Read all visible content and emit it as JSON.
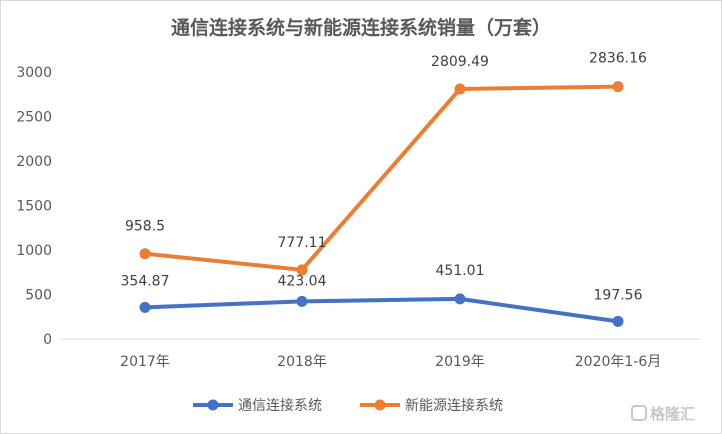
{
  "chart_data": {
    "type": "line",
    "title": "通信连接系统与新能源连接系统销量（万套）",
    "categories": [
      "2017年",
      "2018年",
      "2019年",
      "2020年1-6月"
    ],
    "ylim": [
      0,
      3000
    ],
    "yticks": [
      0,
      500,
      1000,
      1500,
      2000,
      2500,
      3000
    ],
    "grid": false,
    "legend": "bottom",
    "series": [
      {
        "name": "通信连接系统",
        "color": "#4472C4",
        "values": [
          354.87,
          423.04,
          451.01,
          197.56
        ],
        "labels": [
          "354.87",
          "423.04",
          "451.01",
          "197.56"
        ]
      },
      {
        "name": "新能源连接系统",
        "color": "#ED7D31",
        "values": [
          958.5,
          777.11,
          2809.49,
          2836.16
        ],
        "labels": [
          "958.5",
          "777.11",
          "2809.49",
          "2836.16"
        ]
      }
    ]
  },
  "watermark": "格隆汇"
}
